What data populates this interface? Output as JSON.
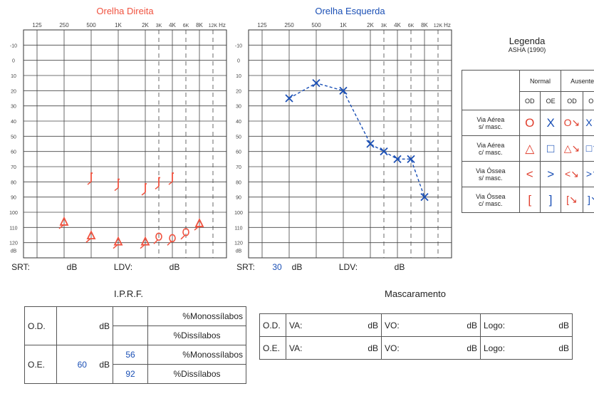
{
  "audiogram": {
    "right": {
      "title": "Orelha Direita",
      "title_color": "#f0523f",
      "freq_labels": [
        "125",
        "250",
        "500",
        "1K",
        "2K",
        "3K",
        "4K",
        "6K",
        "8K",
        "12K",
        "Hz"
      ],
      "db_labels": [
        "-10",
        "0",
        "10",
        "20",
        "30",
        "40",
        "50",
        "60",
        "70",
        "80",
        "90",
        "100",
        "110",
        "120",
        "dB"
      ],
      "srt_label": "SRT:",
      "srt_value": "",
      "srt_unit": "dB",
      "ldv_label": "LDV:",
      "ldv_value": "",
      "ldv_unit": "dB"
    },
    "left": {
      "title": "Orelha Esquerda",
      "title_color": "#1a4fb5",
      "freq_labels": [
        "125",
        "250",
        "500",
        "1K",
        "2K",
        "3K",
        "4K",
        "6K",
        "8K",
        "12K",
        "Hz"
      ],
      "db_labels": [
        "-10",
        "0",
        "10",
        "20",
        "30",
        "40",
        "50",
        "60",
        "70",
        "80",
        "90",
        "100",
        "110",
        "120",
        "dB"
      ],
      "srt_label": "SRT:",
      "srt_value": "30",
      "srt_unit": "dB",
      "ldv_label": "LDV:",
      "ldv_value": "",
      "ldv_unit": "dB"
    }
  },
  "chart_data": [
    {
      "type": "scatter",
      "title": "Orelha Direita",
      "x_unit": "Hz",
      "y_unit": "dB",
      "x_ticks": [
        "125",
        "250",
        "500",
        "1K",
        "2K",
        "3K",
        "4K",
        "6K",
        "8K",
        "12K"
      ],
      "ylim": [
        -10,
        120
      ],
      "y_inverted": true,
      "series": [
        {
          "symbol": "bracket",
          "color": "#f0523f",
          "points": [
            [
              500,
              78
            ],
            [
              1000,
              82
            ],
            [
              2000,
              85
            ],
            [
              3000,
              81
            ],
            [
              4000,
              78
            ]
          ]
        },
        {
          "symbol": "triangle",
          "color": "#f0523f",
          "points": [
            [
              250,
              107
            ],
            [
              500,
              116
            ],
            [
              1000,
              120
            ],
            [
              2000,
              120
            ],
            [
              8000,
              108
            ]
          ]
        },
        {
          "symbol": "circle",
          "color": "#f0523f",
          "points": [
            [
              3000,
              117
            ],
            [
              4000,
              118
            ],
            [
              6000,
              114
            ]
          ]
        }
      ]
    },
    {
      "type": "line",
      "title": "Orelha Esquerda",
      "x_unit": "Hz",
      "y_unit": "dB",
      "x_ticks": [
        "125",
        "250",
        "500",
        "1K",
        "2K",
        "3K",
        "4K",
        "6K",
        "8K",
        "12K"
      ],
      "ylim": [
        -10,
        120
      ],
      "y_inverted": true,
      "series": [
        {
          "symbol": "x",
          "color": "#1a4fb5",
          "dashed": true,
          "points": [
            [
              250,
              25
            ],
            [
              500,
              15
            ],
            [
              1000,
              20
            ],
            [
              2000,
              55
            ],
            [
              3000,
              60
            ],
            [
              4000,
              65
            ],
            [
              6000,
              65
            ],
            [
              8000,
              90
            ]
          ]
        }
      ]
    }
  ],
  "legend": {
    "title": "Legenda",
    "subtitle": "ASHA (1990)",
    "col_groups": [
      "Normal",
      "Ausente"
    ],
    "cols": [
      "OD",
      "OE",
      "OD",
      "OE"
    ],
    "rows": [
      {
        "label1": "Via Aérea",
        "label2": "s/ masc.",
        "symbols": [
          "O",
          "X",
          "O↘",
          "X↘"
        ]
      },
      {
        "label1": "Via Aérea",
        "label2": "c/ masc.",
        "symbols": [
          "△",
          "□",
          "△↘",
          "□↘"
        ]
      },
      {
        "label1": "Via Óssea",
        "label2": "s/ masc.",
        "symbols": [
          "<",
          ">",
          "<↘",
          ">↘"
        ]
      },
      {
        "label1": "Via Óssea",
        "label2": "c/ masc.",
        "symbols": [
          "[",
          "]",
          "[↘",
          "]↘"
        ]
      }
    ]
  },
  "iprf": {
    "title": "I.P.R.F.",
    "rows": [
      {
        "ear": "O.D.",
        "db_value": "",
        "db_unit": "dB",
        "pct1": "",
        "label1": "%Monossílabos",
        "pct2": "",
        "label2": "%Dissílabos"
      },
      {
        "ear": "O.E.",
        "db_value": "60",
        "db_unit": "dB",
        "pct1": "56",
        "label1": "%Monossílabos",
        "pct2": "92",
        "label2": "%Dissílabos"
      }
    ]
  },
  "masking": {
    "title": "Mascaramento",
    "rows": [
      {
        "ear": "O.D.",
        "va": "VA:",
        "va_unit": "dB",
        "vo": "VO:",
        "vo_unit": "dB",
        "logo": "Logo:",
        "logo_unit": "dB"
      },
      {
        "ear": "O.E.",
        "va": "VA:",
        "va_unit": "dB",
        "vo": "VO:",
        "vo_unit": "dB",
        "logo": "Logo:",
        "logo_unit": "dB"
      }
    ]
  }
}
